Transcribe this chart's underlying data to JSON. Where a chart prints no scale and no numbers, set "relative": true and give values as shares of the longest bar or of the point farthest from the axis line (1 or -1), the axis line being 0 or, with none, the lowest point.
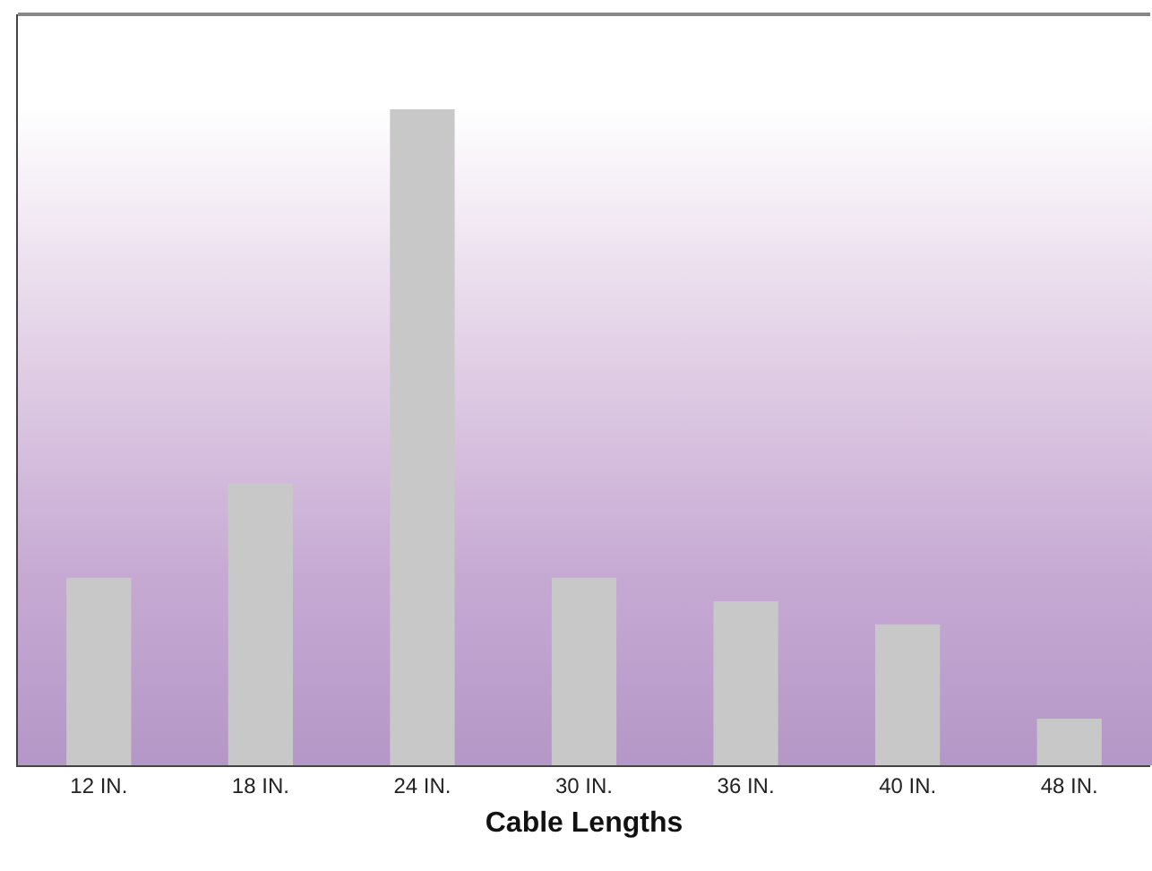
{
  "chart_data": {
    "type": "bar",
    "relative": true,
    "xlabel": "Cable Lengths",
    "categories": [
      "12 IN.",
      "18 IN.",
      "24 IN.",
      "30 IN.",
      "36 IN.",
      "40 IN.",
      "48 IN."
    ],
    "values": [
      0.286,
      0.43,
      1,
      0.286,
      0.25,
      0.215,
      0.071
    ],
    "color": "#c8c8c8",
    "grid": false,
    "legend": false
  }
}
